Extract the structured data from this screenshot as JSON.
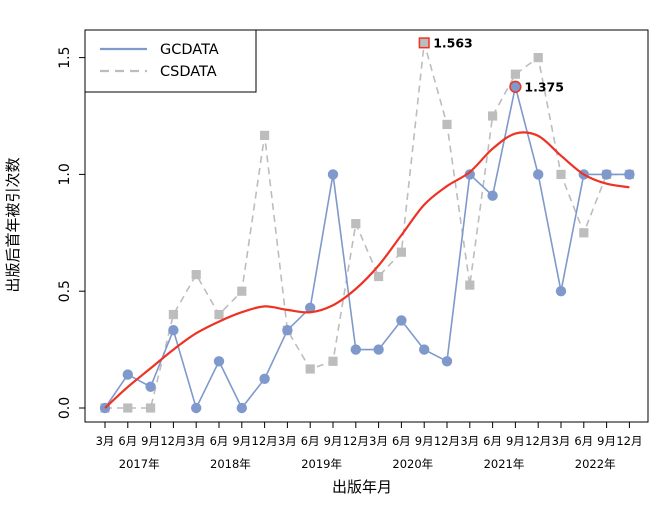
{
  "chart_data": {
    "type": "line",
    "xlabel": "出版年月",
    "ylabel": "出版后首年被引次数",
    "ylim": [
      0,
      1.6
    ],
    "yticks": [
      "0.0",
      "0.5",
      "1.0",
      "1.5"
    ],
    "grid": false,
    "legend_position": "top-left",
    "x": [
      "3月",
      "6月",
      "9月",
      "12月",
      "3月",
      "6月",
      "9月",
      "12月",
      "3月",
      "6月",
      "9月",
      "12月",
      "3月",
      "6月",
      "9月",
      "12月",
      "3月",
      "6月",
      "9月",
      "12月",
      "3月",
      "6月",
      "9月",
      "12月"
    ],
    "year_labels": [
      "2017年",
      "2018年",
      "2019年",
      "2020年",
      "2021年",
      "2022年"
    ],
    "series": [
      {
        "name": "GCDATA",
        "color": "#7f99cc",
        "style": "solid",
        "marker": "circle",
        "values": [
          0,
          0.143,
          0.091,
          0.333,
          0,
          0.2,
          0,
          0.125,
          0.333,
          0.429,
          1.0,
          0.25,
          0.25,
          0.375,
          0.25,
          0.2,
          1.0,
          0.909,
          1.375,
          1.0,
          0.5,
          1.0,
          1.0,
          1.0
        ]
      },
      {
        "name": "CSDATA",
        "color": "#bdbdbd",
        "style": "dashed",
        "marker": "square",
        "values": [
          0,
          0,
          0,
          0.4,
          0.571,
          0.4,
          0.5,
          1.167,
          0.333,
          0.167,
          0.2,
          0.789,
          0.563,
          0.667,
          1.563,
          1.214,
          0.526,
          1.25,
          1.429,
          1.5,
          1.0,
          0.75,
          1.0,
          1.0
        ]
      },
      {
        "color": "#ee3322",
        "style": "smooth",
        "marker": "none",
        "values": [
          0.0,
          0.09,
          0.17,
          0.25,
          0.32,
          0.37,
          0.41,
          0.435,
          0.42,
          0.41,
          0.44,
          0.51,
          0.61,
          0.74,
          0.87,
          0.95,
          1.01,
          1.11,
          1.175,
          1.165,
          1.08,
          1.0,
          0.96,
          0.945
        ]
      }
    ],
    "annotations": [
      {
        "series": "CSDATA",
        "index": 14,
        "label": "1.563"
      },
      {
        "series": "GCDATA",
        "index": 18,
        "label": "1.375"
      }
    ]
  }
}
